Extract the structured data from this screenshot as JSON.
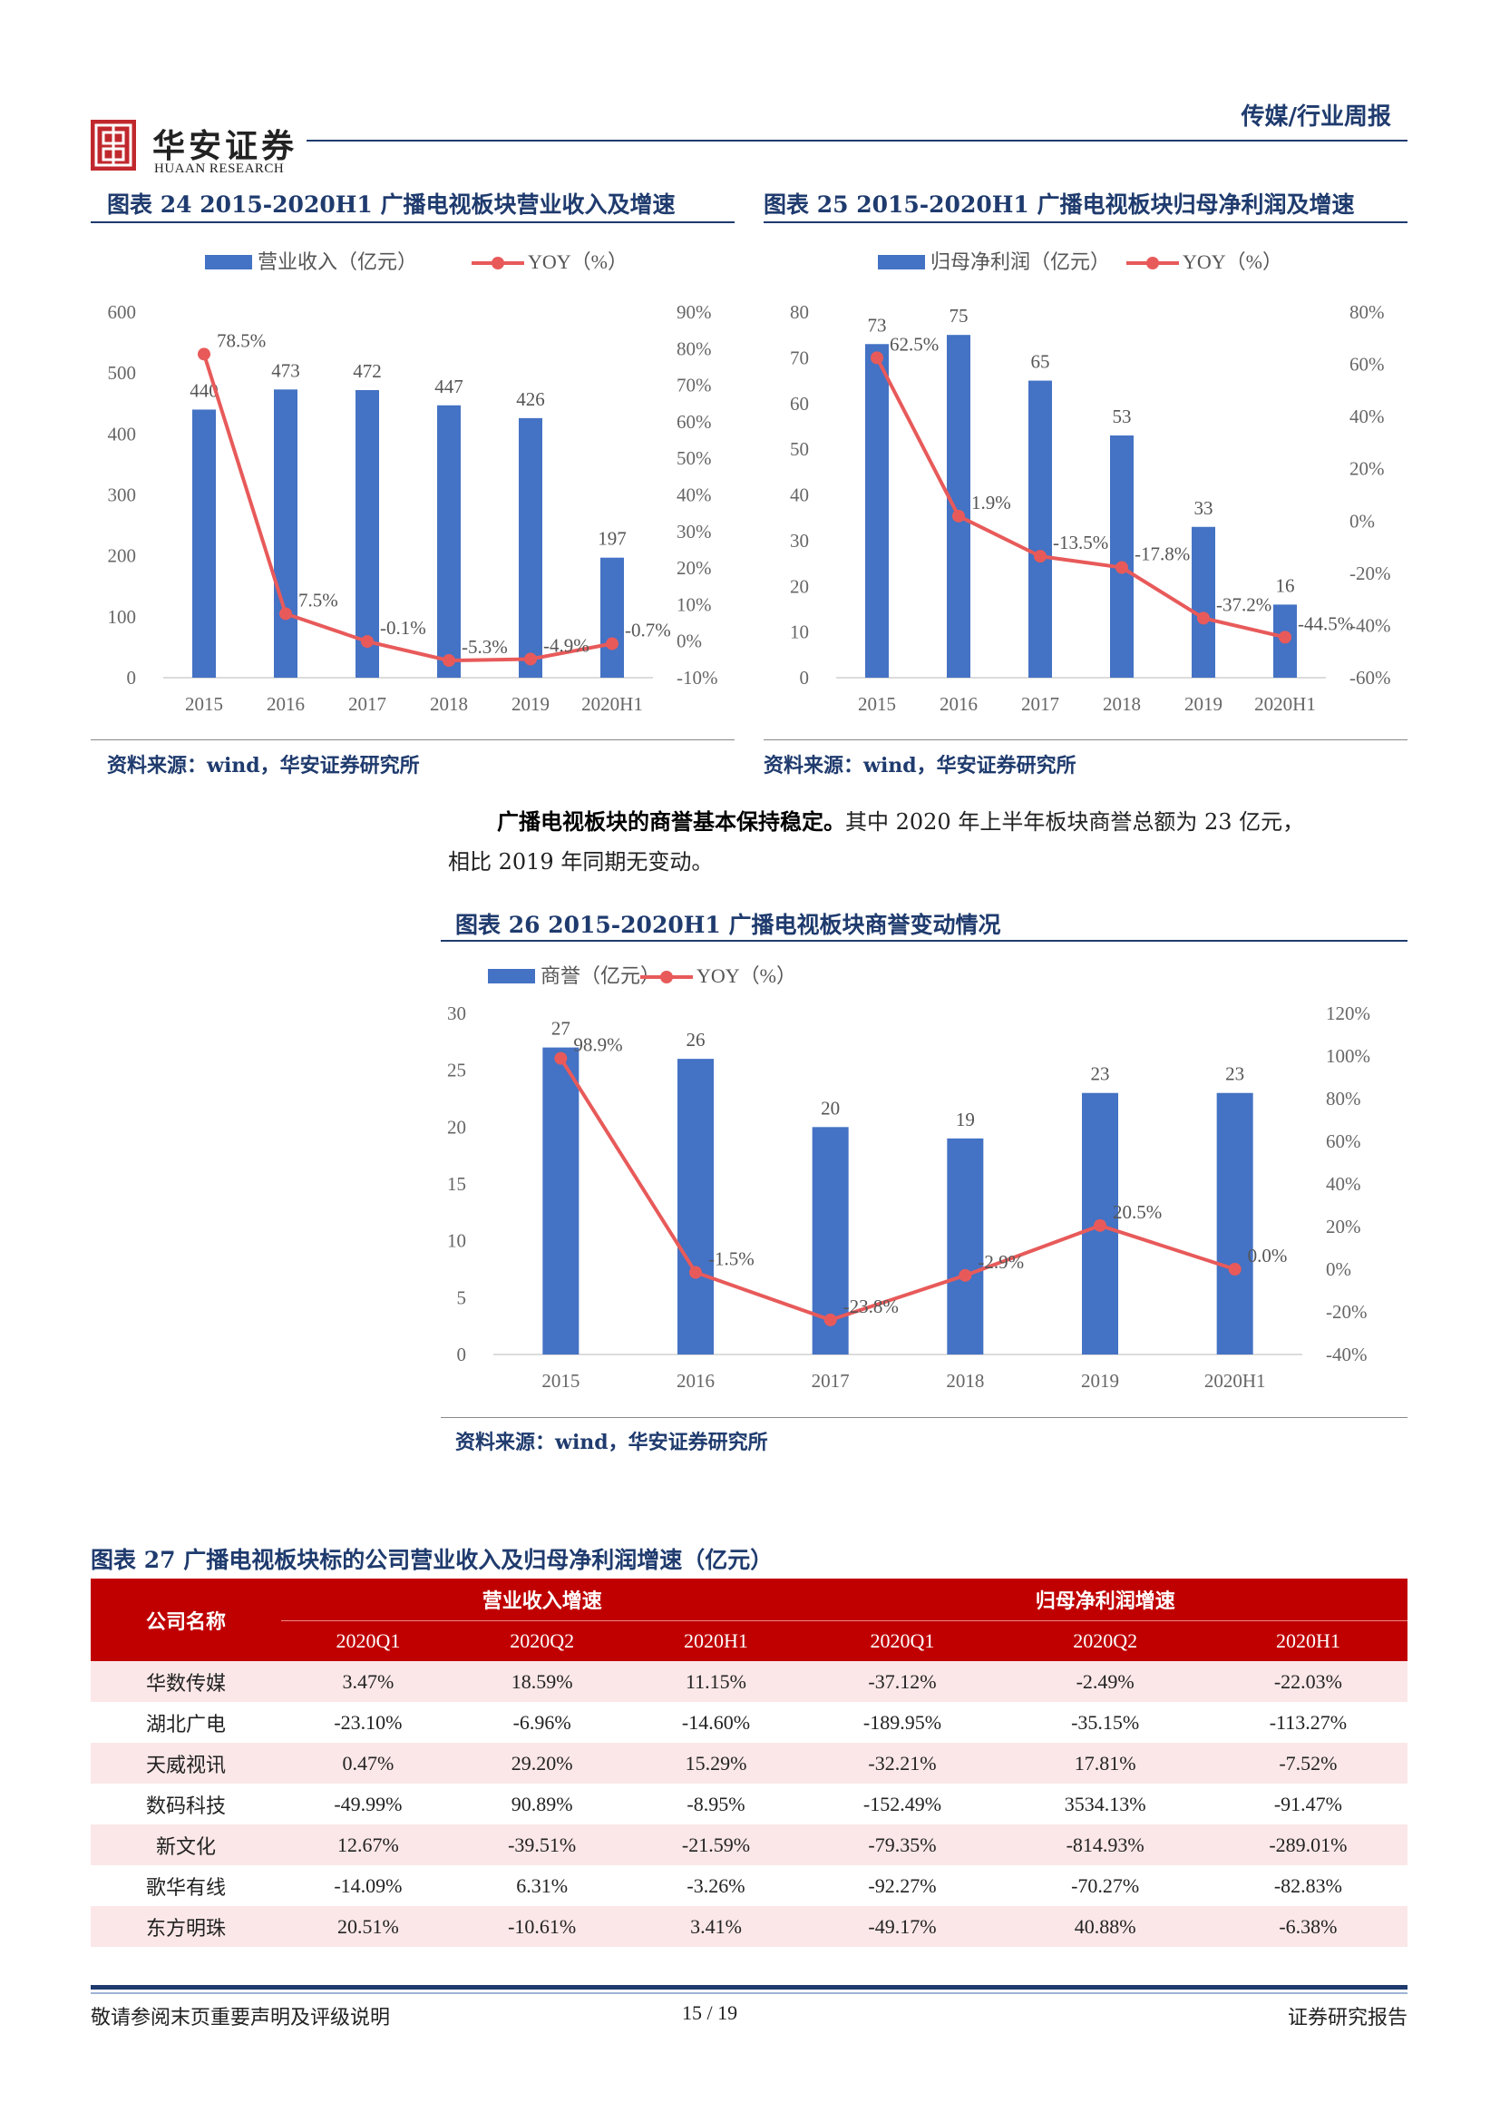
{
  "header": {
    "logo_cn": "华安证券",
    "logo_en": "HUAAN RESEARCH",
    "section": "传媒/行业周报"
  },
  "fig24": {
    "title": "图表 24   2015-2020H1 广播电视板块营业收入及增速",
    "source": "资料来源：wind，华安证券研究所",
    "chart_data": {
      "type": "bar",
      "categories": [
        "2015",
        "2016",
        "2017",
        "2018",
        "2019",
        "2020H1"
      ],
      "series": [
        {
          "name": "营业收入（亿元）",
          "type": "bar",
          "values": [
            440,
            473,
            472,
            447,
            426,
            197
          ],
          "color": "#4472c4"
        },
        {
          "name": "YOY（%）",
          "type": "line",
          "values": [
            78.5,
            7.5,
            -0.1,
            -5.3,
            -4.9,
            -0.7
          ],
          "color": "#e85a5a"
        }
      ],
      "bar_labels": [
        "440",
        "473",
        "472",
        "447",
        "426",
        "197"
      ],
      "line_labels": [
        "78.5%",
        "7.5%",
        "-0.1%",
        "-5.3%",
        "-4.9%",
        "-0.7%"
      ],
      "y_left": {
        "min": 0,
        "max": 600,
        "ticks": [
          "0",
          "100",
          "200",
          "300",
          "400",
          "500",
          "600"
        ]
      },
      "y_right": {
        "min": -10,
        "max": 90,
        "ticks": [
          "-10%",
          "0%",
          "10%",
          "20%",
          "30%",
          "40%",
          "50%",
          "60%",
          "70%",
          "80%",
          "90%"
        ]
      },
      "legend": "top"
    }
  },
  "fig25": {
    "title": "图表 25   2015-2020H1 广播电视板块归母净利润及增速",
    "source": "资料来源：wind，华安证券研究所",
    "chart_data": {
      "type": "bar",
      "categories": [
        "2015",
        "2016",
        "2017",
        "2018",
        "2019",
        "2020H1"
      ],
      "series": [
        {
          "name": "归母净利润（亿元）",
          "type": "bar",
          "values": [
            73,
            75,
            65,
            53,
            33,
            16
          ],
          "color": "#4472c4"
        },
        {
          "name": "YOY（%）",
          "type": "line",
          "values": [
            62.5,
            1.9,
            -13.5,
            -17.8,
            -37.2,
            -44.5
          ],
          "color": "#e85a5a"
        }
      ],
      "bar_labels": [
        "73",
        "75",
        "65",
        "53",
        "33",
        "16"
      ],
      "line_labels": [
        "62.5%",
        "1.9%",
        "-13.5%",
        "-17.8%",
        "-37.2%",
        "-44.5%"
      ],
      "y_left": {
        "min": 0,
        "max": 80,
        "ticks": [
          "0",
          "10",
          "20",
          "30",
          "40",
          "50",
          "60",
          "70",
          "80"
        ]
      },
      "y_right": {
        "min": -60,
        "max": 80,
        "ticks": [
          "-60%",
          "-40%",
          "-20%",
          "0%",
          "20%",
          "40%",
          "60%",
          "80%"
        ]
      },
      "legend": "top"
    }
  },
  "para": {
    "bold": "广播电视板块的商誉基本保持稳定。",
    "rest": "其中 2020 年上半年板块商誉总额为 23 亿元，",
    "line2": "相比 2019 年同期无变动。"
  },
  "fig26": {
    "title": "图表 26   2015-2020H1 广播电视板块商誉变动情况",
    "source": "资料来源：wind，华安证券研究所",
    "chart_data": {
      "type": "bar",
      "categories": [
        "2015",
        "2016",
        "2017",
        "2018",
        "2019",
        "2020H1"
      ],
      "series": [
        {
          "name": "商誉（亿元）",
          "type": "bar",
          "values": [
            27,
            26,
            20,
            19,
            23,
            23
          ],
          "color": "#4472c4"
        },
        {
          "name": "YOY（%）",
          "type": "line",
          "values": [
            98.9,
            -1.5,
            -23.8,
            -2.9,
            20.5,
            0.0
          ],
          "color": "#e85a5a"
        }
      ],
      "bar_labels": [
        "27",
        "26",
        "20",
        "19",
        "23",
        "23"
      ],
      "line_labels": [
        "98.9%",
        "-1.5%",
        "-23.8%",
        "-2.9%",
        "20.5%",
        "0.0%"
      ],
      "y_left": {
        "min": 0,
        "max": 30,
        "ticks": [
          "0",
          "5",
          "10",
          "15",
          "20",
          "25",
          "30"
        ]
      },
      "y_right": {
        "min": -40,
        "max": 120,
        "ticks": [
          "-40%",
          "-20%",
          "0%",
          "20%",
          "40%",
          "60%",
          "80%",
          "100%",
          "120%"
        ]
      },
      "legend": "top"
    }
  },
  "fig27": {
    "title": "图表 27   广播电视板块标的公司营业收入及归母净利润增速（亿元）",
    "col_company": "公司名称",
    "group1": "营业收入增速",
    "group2": "归母净利润增速",
    "subcols": [
      "2020Q1",
      "2020Q2",
      "2020H1",
      "2020Q1",
      "2020Q2",
      "2020H1"
    ],
    "rows": [
      {
        "name": "华数传媒",
        "values": [
          "3.47%",
          "18.59%",
          "11.15%",
          "-37.12%",
          "-2.49%",
          "-22.03%"
        ]
      },
      {
        "name": "湖北广电",
        "values": [
          "-23.10%",
          "-6.96%",
          "-14.60%",
          "-189.95%",
          "-35.15%",
          "-113.27%"
        ]
      },
      {
        "name": "天威视讯",
        "values": [
          "0.47%",
          "29.20%",
          "15.29%",
          "-32.21%",
          "17.81%",
          "-7.52%"
        ]
      },
      {
        "name": "数码科技",
        "values": [
          "-49.99%",
          "90.89%",
          "-8.95%",
          "-152.49%",
          "3534.13%",
          "-91.47%"
        ]
      },
      {
        "name": "新文化",
        "values": [
          "12.67%",
          "-39.51%",
          "-21.59%",
          "-79.35%",
          "-814.93%",
          "-289.01%"
        ]
      },
      {
        "name": "歌华有线",
        "values": [
          "-14.09%",
          "6.31%",
          "-3.26%",
          "-92.27%",
          "-70.27%",
          "-82.83%"
        ]
      },
      {
        "name": "东方明珠",
        "values": [
          "20.51%",
          "-10.61%",
          "3.41%",
          "-49.17%",
          "40.88%",
          "-6.38%"
        ]
      }
    ]
  },
  "footer": {
    "left": "敬请参阅末页重要声明及评级说明",
    "page": "15 / 19",
    "right": "证券研究报告"
  }
}
